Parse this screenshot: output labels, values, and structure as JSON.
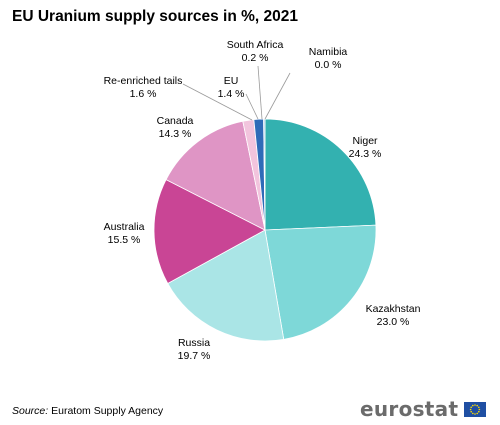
{
  "chart_data": {
    "type": "pie",
    "title": "EU Uranium supply sources in %, 2021",
    "unit": "%",
    "slices": [
      {
        "label": "Niger",
        "value": 24.3,
        "value_text": "24.3 %",
        "color": "#33b1b0"
      },
      {
        "label": "Kazakhstan",
        "value": 23.0,
        "value_text": "23.0 %",
        "color": "#7ed8d8"
      },
      {
        "label": "Russia",
        "value": 19.7,
        "value_text": "19.7 %",
        "color": "#aae5e6"
      },
      {
        "label": "Australia",
        "value": 15.5,
        "value_text": "15.5 %",
        "color": "#c94595"
      },
      {
        "label": "Canada",
        "value": 14.3,
        "value_text": "14.3 %",
        "color": "#df95c5"
      },
      {
        "label": "Re-enriched tails",
        "value": 1.6,
        "value_text": "1.6 %",
        "color": "#f2c4dd"
      },
      {
        "label": "EU",
        "value": 1.4,
        "value_text": "1.4 %",
        "color": "#2f6bb8"
      },
      {
        "label": "South Africa",
        "value": 0.2,
        "value_text": "0.2 %",
        "color": "#a5c8ea"
      },
      {
        "label": "Namibia",
        "value": 0.0,
        "value_text": "0.0 %",
        "color": "#1a3a8a"
      }
    ]
  },
  "source": {
    "key": "Source:",
    "text": "Euratom Supply Agency"
  },
  "logo": {
    "text": "eurostat"
  }
}
